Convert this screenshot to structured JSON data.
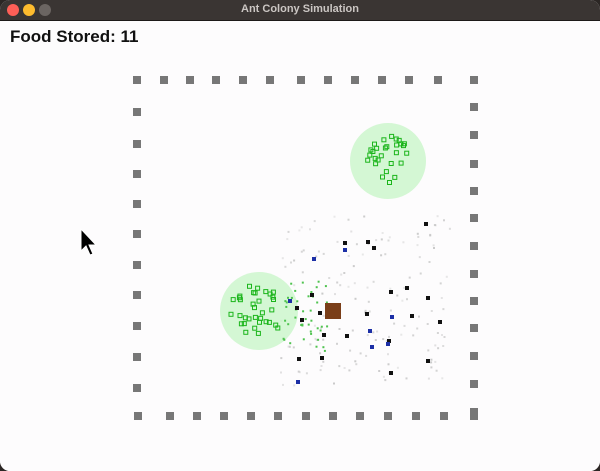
{
  "window": {
    "title": "Ant Colony Simulation"
  },
  "hud": {
    "food_stored": "Food Stored: 11"
  },
  "colors": {
    "wall": "#777777",
    "nest": "#7a3e19",
    "food_zone": "#c9f5c9",
    "food_item": "#1bb51b",
    "ant": "#111111",
    "carrying_ant": "#1c2fa6",
    "pheromone": "#bdbdbd"
  },
  "icons": {
    "cursor": "mouse-pointer-icon"
  }
}
